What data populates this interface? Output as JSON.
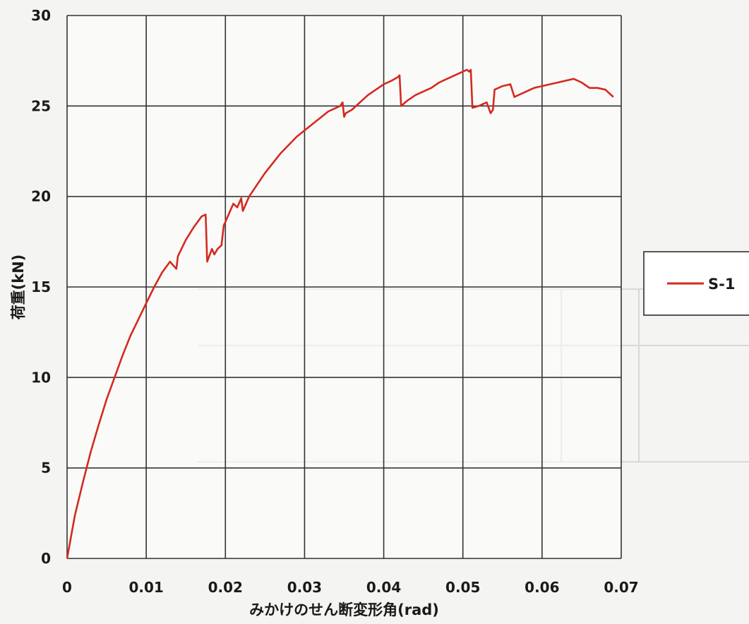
{
  "chart_data": {
    "type": "line",
    "xlabel": "みかけのせん断変形角(rad)",
    "ylabel": "荷重(kN)",
    "xlim": [
      0,
      0.07
    ],
    "ylim": [
      0,
      30
    ],
    "x_ticks": [
      0,
      0.01,
      0.02,
      0.03,
      0.04,
      0.05,
      0.06,
      0.07
    ],
    "x_tick_labels": [
      "0",
      "0.01",
      "0.02",
      "0.03",
      "0.04",
      "0.05",
      "0.06",
      "0.07"
    ],
    "y_ticks": [
      0,
      5,
      10,
      15,
      20,
      25,
      30
    ],
    "y_tick_labels": [
      "0",
      "5",
      "10",
      "15",
      "20",
      "25",
      "30"
    ],
    "grid": true,
    "legend_position": "right",
    "series": [
      {
        "name": "S-1",
        "color": "#d42a1e",
        "x": [
          0,
          0.001,
          0.002,
          0.003,
          0.004,
          0.005,
          0.006,
          0.007,
          0.008,
          0.009,
          0.01,
          0.011,
          0.012,
          0.013,
          0.0138,
          0.014,
          0.015,
          0.016,
          0.017,
          0.0175,
          0.0177,
          0.0183,
          0.0186,
          0.019,
          0.0195,
          0.0198,
          0.02,
          0.0205,
          0.021,
          0.0215,
          0.022,
          0.0222,
          0.023,
          0.025,
          0.027,
          0.029,
          0.031,
          0.033,
          0.0345,
          0.0348,
          0.035,
          0.0352,
          0.036,
          0.037,
          0.038,
          0.039,
          0.04,
          0.041,
          0.0418,
          0.042,
          0.0422,
          0.043,
          0.044,
          0.045,
          0.046,
          0.047,
          0.048,
          0.049,
          0.05,
          0.0505,
          0.0508,
          0.051,
          0.0512,
          0.052,
          0.053,
          0.0535,
          0.0538,
          0.054,
          0.055,
          0.056,
          0.0565,
          0.057,
          0.058,
          0.059,
          0.06,
          0.061,
          0.062,
          0.063,
          0.064,
          0.065,
          0.066,
          0.067,
          0.068,
          0.069
        ],
        "y": [
          0,
          2.4,
          4.2,
          5.9,
          7.4,
          8.8,
          10.0,
          11.2,
          12.3,
          13.2,
          14.1,
          15.0,
          15.8,
          16.4,
          16.0,
          16.7,
          17.6,
          18.3,
          18.9,
          19.0,
          16.4,
          17.1,
          16.8,
          17.1,
          17.3,
          18.4,
          18.6,
          19.1,
          19.6,
          19.4,
          19.9,
          19.2,
          20.0,
          21.3,
          22.4,
          23.3,
          24.0,
          24.7,
          25.0,
          25.2,
          24.4,
          24.6,
          24.8,
          25.2,
          25.6,
          25.9,
          26.2,
          26.4,
          26.6,
          26.7,
          25.0,
          25.3,
          25.6,
          25.8,
          26.0,
          26.3,
          26.5,
          26.7,
          26.9,
          27.0,
          26.9,
          27.0,
          24.9,
          25.0,
          25.2,
          24.6,
          24.8,
          25.9,
          26.1,
          26.2,
          25.5,
          25.6,
          25.8,
          26.0,
          26.1,
          26.2,
          26.3,
          26.4,
          26.5,
          26.3,
          26.0,
          26.0,
          25.9,
          25.5
        ]
      }
    ]
  }
}
